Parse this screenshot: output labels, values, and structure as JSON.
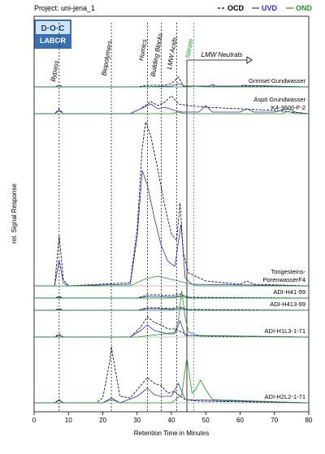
{
  "chart_data": {
    "type": "chromatogram",
    "title": "Project: uni-jena_1",
    "logo": [
      "D·O·C",
      "LABOR"
    ],
    "xlabel": "Retention Time in Minutes",
    "ylabel": "rel. Signal Response",
    "xlim": [
      0,
      80
    ],
    "xticks": [
      0,
      10,
      20,
      30,
      40,
      50,
      60,
      70,
      80
    ],
    "series_styles": [
      {
        "name": "OCD",
        "color": "#000000",
        "dashed": true
      },
      {
        "name": "UVD",
        "color": "#2b2bd0",
        "dashed": false
      },
      {
        "name": "OND",
        "color": "#1e9a1e",
        "dashed": false
      }
    ],
    "regions": [
      {
        "label": "Bypass",
        "x": 7.3,
        "color": "#000000"
      },
      {
        "label": "Biopolymers",
        "x": 22.5,
        "color": "#000000"
      },
      {
        "label": "Humics",
        "x": 33,
        "color": "#000000"
      },
      {
        "label": "Building Blocks",
        "x": 37,
        "color": "#000000"
      },
      {
        "label": "LMW Acids",
        "x": 41.5,
        "color": "#000000"
      },
      {
        "label": "Nitrate",
        "x": 46.5,
        "color": "#1e9a1e"
      }
    ],
    "neutrals": {
      "label": "LMW Neutrals",
      "x": 44.5,
      "x_end": 62
    },
    "samples": [
      {
        "label": [
          "Grimsel Gundwasser"
        ],
        "series": [
          {
            "x": [
              0,
              6,
              7.3,
              8.5,
              30,
              33,
              38,
              40,
              42,
              43.5,
              50,
              60,
              80
            ],
            "values": [
              0,
              0,
              1,
              0,
              0,
              1,
              1,
              2,
              6,
              0.5,
              0.5,
              0.5,
              0
            ]
          },
          {
            "x": [
              0,
              30,
              40,
              42,
              44,
              51,
              52,
              53,
              60,
              61,
              80
            ],
            "values": [
              0,
              0,
              0.5,
              2,
              0.5,
              0.5,
              1.5,
              0.5,
              0.5,
              1,
              0
            ]
          },
          {
            "x": [
              0,
              45,
              47,
              50,
              80
            ],
            "values": [
              0,
              0,
              0.5,
              0,
              0
            ]
          }
        ]
      },
      {
        "label": [
          "Äspö Grundwasser",
          "K4-3600-F-2"
        ],
        "series": [
          {
            "x": [
              0,
              6,
              7.3,
              8.5,
              28,
              31,
              34,
              36,
              38,
              40,
              42,
              45,
              50,
              60,
              70,
              75,
              80
            ],
            "values": [
              0,
              0,
              3,
              0,
              0,
              3,
              7.5,
              5,
              7,
              11,
              6,
              5,
              4,
              3,
              2,
              1,
              0
            ]
          },
          {
            "x": [
              0,
              6,
              7.3,
              8.5,
              28,
              32,
              34,
              36,
              38,
              41,
              43,
              48,
              50,
              52,
              60,
              62,
              64,
              70,
              74,
              76,
              80
            ],
            "values": [
              0,
              0,
              2,
              0,
              0,
              4,
              6,
              3,
              4,
              2,
              1,
              1,
              5,
              1,
              1,
              3,
              1,
              1,
              3,
              1,
              0
            ]
          },
          {
            "x": [
              0,
              40,
              42,
              44,
              72,
              74,
              76,
              80
            ],
            "values": [
              0,
              0,
              1,
              0,
              0,
              1.5,
              0,
              0
            ]
          }
        ]
      },
      {
        "label": [
          "Tongesteins-",
          "PorenwasserF4"
        ],
        "series": [
          {
            "x": [
              0,
              6,
              7.3,
              8.5,
              10,
              28,
              30,
              31.5,
              32.5,
              34,
              36,
              38,
              40,
              41.5,
              42.5,
              43.5,
              45,
              50,
              60,
              62,
              64,
              80
            ],
            "values": [
              0,
              0,
              31,
              4,
              0,
              2,
              35,
              85,
              101,
              92,
              72,
              50,
              32,
              28,
              51,
              20,
              8,
              3,
              1,
              3,
              1,
              0
            ]
          },
          {
            "x": [
              0,
              6,
              7.3,
              8.5,
              10,
              28,
              30,
              31.5,
              33,
              35,
              37,
              39,
              41,
              42.8,
              44,
              46,
              80
            ],
            "values": [
              0,
              0,
              16,
              2,
              0,
              1,
              30,
              71,
              62,
              42,
              25,
              15,
              12,
              38,
              5,
              1,
              0
            ]
          },
          {
            "x": [
              0,
              28,
              32,
              36,
              40,
              44,
              48,
              80
            ],
            "values": [
              0,
              0,
              4,
              6,
              4,
              2,
              0,
              0
            ]
          }
        ]
      },
      {
        "label": [
          "ADI-H41-99"
        ],
        "series": [
          {
            "x": [
              0,
              6,
              7.3,
              8.5,
              30,
              33,
              36,
              40,
              42.5,
              45,
              80
            ],
            "values": [
              0,
              0,
              1,
              0,
              0,
              2,
              2,
              1.5,
              2.5,
              0.5,
              0
            ]
          },
          {
            "x": [
              0,
              6,
              7.3,
              8.5,
              30,
              33,
              36,
              40,
              42.5,
              45,
              80
            ],
            "values": [
              0,
              0,
              0.5,
              0,
              0,
              1,
              1,
              0.5,
              1.5,
              0,
              0
            ]
          },
          {
            "x": [
              0,
              40,
              43,
              46,
              80
            ],
            "values": [
              0,
              0,
              1,
              0,
              0
            ]
          }
        ]
      },
      {
        "label": [
          "ADI-H413-99"
        ],
        "series": [
          {
            "x": [
              0,
              6,
              7.3,
              8.5,
              30,
              33,
              36,
              40,
              42.5,
              45,
              80
            ],
            "values": [
              0,
              0,
              1,
              0,
              0,
              1.5,
              1.5,
              1,
              2,
              0.5,
              0
            ]
          },
          {
            "x": [
              0,
              6,
              7.3,
              8.5,
              30,
              33,
              36,
              40,
              42.5,
              45,
              80
            ],
            "values": [
              0,
              0,
              0.5,
              0,
              0,
              1,
              1,
              0.5,
              1,
              0,
              0
            ]
          },
          {
            "x": [
              0,
              40,
              43,
              46,
              80
            ],
            "values": [
              0,
              0,
              1.5,
              0,
              0
            ]
          }
        ]
      },
      {
        "label": [
          "ADI-H1L3-1-71"
        ],
        "series": [
          {
            "x": [
              0,
              6,
              7.3,
              8.5,
              28,
              31,
              33,
              35,
              37,
              39,
              41,
              43,
              45,
              50,
              80
            ],
            "values": [
              0,
              0,
              2,
              0,
              0,
              6,
              12.5,
              9,
              7.5,
              5,
              5,
              3,
              1,
              0.5,
              0
            ]
          },
          {
            "x": [
              0,
              6,
              7.3,
              8.5,
              28,
              31,
              33,
              35,
              37,
              39,
              41,
              42.5,
              44,
              80
            ],
            "values": [
              0,
              0,
              1,
              0,
              0,
              4,
              7.5,
              4,
              3,
              2,
              2,
              10,
              1,
              0
            ]
          },
          {
            "x": [
              0,
              30,
              34,
              38,
              41,
              42,
              43,
              44,
              45,
              48,
              80
            ],
            "values": [
              0,
              0,
              1,
              2,
              3,
              10,
              28.5,
              12,
              3,
              1,
              0
            ]
          }
        ]
      },
      {
        "label": [
          "ADI-H2L2-1-71"
        ],
        "series": [
          {
            "x": [
              0,
              6,
              7.3,
              8.5,
              18,
              20,
              22,
              22.5,
              23,
              25,
              28,
              30,
              33,
              35,
              37,
              39,
              41,
              42,
              44,
              48,
              80
            ],
            "values": [
              0,
              0,
              2,
              0,
              0,
              3,
              25,
              34.5,
              28,
              4,
              3,
              8,
              15.5,
              12,
              10.5,
              6,
              7,
              5,
              2,
              1,
              0
            ]
          },
          {
            "x": [
              0,
              6,
              7.3,
              8.5,
              20,
              22.5,
              25,
              30,
              33,
              35,
              37,
              40,
              42,
              44,
              80
            ],
            "values": [
              0,
              0,
              1.5,
              0,
              0,
              3,
              0,
              4,
              9,
              5,
              4,
              4,
              12,
              2,
              0
            ]
          },
          {
            "x": [
              0,
              20,
              22.5,
              25,
              40,
              43,
              44.5,
              46,
              47,
              48.5,
              50,
              52,
              80
            ],
            "values": [
              0,
              0,
              2,
              0,
              0,
              5,
              28,
              6,
              8,
              14,
              8,
              2,
              0
            ]
          }
        ]
      }
    ]
  }
}
